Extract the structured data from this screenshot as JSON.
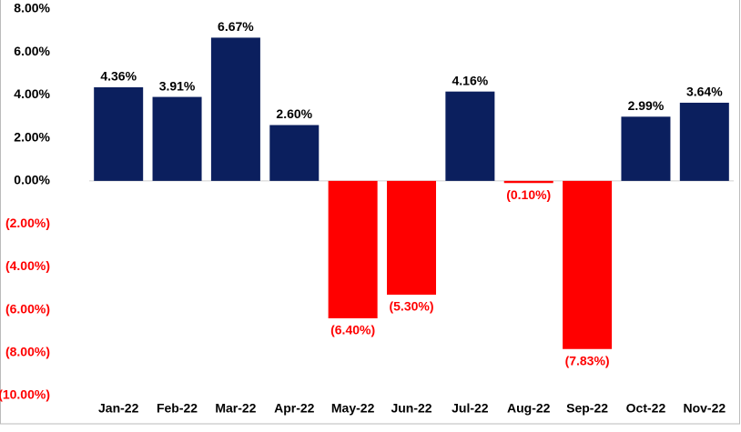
{
  "chart_data": {
    "type": "bar",
    "categories": [
      "Jan-22",
      "Feb-22",
      "Mar-22",
      "Apr-22",
      "May-22",
      "Jun-22",
      "Jul-22",
      "Aug-22",
      "Sep-22",
      "Oct-22",
      "Nov-22"
    ],
    "values": [
      4.36,
      3.91,
      6.67,
      2.6,
      -6.4,
      -5.3,
      4.16,
      -0.1,
      -7.83,
      2.99,
      3.64
    ],
    "value_labels": [
      "4.36%",
      "3.91%",
      "6.67%",
      "2.60%",
      "(6.40%)",
      "(5.30%)",
      "4.16%",
      "(0.10%)",
      "(7.83%)",
      "2.99%",
      "3.64%"
    ],
    "color": "#0b1f5e",
    "negative_color": "#ff0000",
    "ylim": [
      -10,
      8
    ],
    "yticks": [
      {
        "value": -10,
        "label": "(10.00%)"
      },
      {
        "value": -8,
        "label": "(8.00%)"
      },
      {
        "value": -6,
        "label": "(6.00%)"
      },
      {
        "value": -4,
        "label": "(4.00%)"
      },
      {
        "value": -2,
        "label": "(2.00%)"
      },
      {
        "value": 0,
        "label": "0.00%"
      },
      {
        "value": 2,
        "label": "2.00%"
      },
      {
        "value": 4,
        "label": "4.00%"
      },
      {
        "value": 6,
        "label": "6.00%"
      },
      {
        "value": 8,
        "label": "8.00%"
      }
    ],
    "grid": false
  }
}
